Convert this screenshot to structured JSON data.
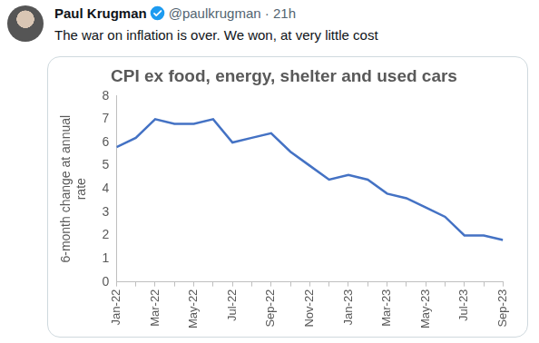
{
  "post": {
    "author": "Paul Krugman",
    "meta": "@paulkrugman · 21h",
    "text": "The war on inflation is over. We won, at very little cost"
  },
  "chart_data": {
    "type": "line",
    "title": "CPI ex food, energy, shelter and used cars",
    "y_label": "6-month change at annual rate",
    "categories": [
      "Jan-22",
      null,
      "Mar-22",
      null,
      "May-22",
      null,
      "Jul-22",
      null,
      "Sep-22",
      null,
      "Nov-22",
      null,
      "Jan-23",
      null,
      "Mar-23",
      null,
      "May-23",
      null,
      "Jul-23",
      null,
      "Sep-23"
    ],
    "values": [
      5.8,
      6.2,
      7.0,
      6.8,
      6.8,
      7.0,
      6.0,
      6.2,
      6.4,
      5.6,
      5.0,
      4.4,
      4.6,
      4.4,
      3.8,
      3.6,
      3.2,
      2.8,
      2.0,
      2.0,
      1.8
    ],
    "color": "#4472c4",
    "marker": "none",
    "line_style": "solid",
    "ylim": [
      0,
      8
    ],
    "yticks": [
      0,
      1,
      2,
      3,
      4,
      5,
      6,
      7,
      8
    ],
    "grid": false
  }
}
